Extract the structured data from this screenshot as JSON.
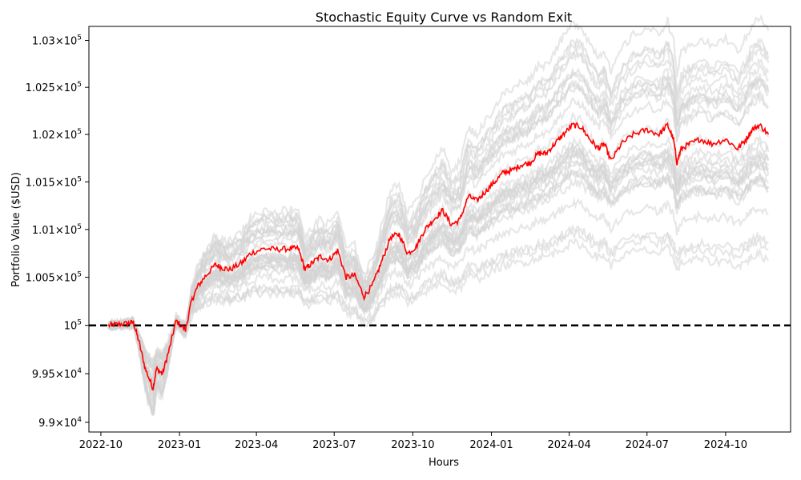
{
  "chart_data": {
    "type": "line",
    "title": "Stochastic Equity Curve vs Random Exit",
    "xlabel": "Hours",
    "ylabel": "Portfolio Value ($USD)",
    "x_range": [
      "2022-09-17",
      "2024-12-16"
    ],
    "y_range": [
      98900,
      103150
    ],
    "y_scale": "log",
    "grid": false,
    "legend": "none",
    "x_ticks": [
      "2022-10",
      "2023-01",
      "2023-04",
      "2023-07",
      "2023-10",
      "2024-01",
      "2024-04",
      "2024-07",
      "2024-10"
    ],
    "y_ticks": [
      {
        "value": 99000,
        "mantissa": "9.9",
        "exp": "4"
      },
      {
        "value": 99500,
        "mantissa": "9.95",
        "exp": "4"
      },
      {
        "value": 100000,
        "mantissa": "",
        "exp": "5"
      },
      {
        "value": 100500,
        "mantissa": "1.005",
        "exp": "5"
      },
      {
        "value": 101000,
        "mantissa": "1.01",
        "exp": "5"
      },
      {
        "value": 101500,
        "mantissa": "1.015",
        "exp": "5"
      },
      {
        "value": 102000,
        "mantissa": "1.02",
        "exp": "5"
      },
      {
        "value": 102500,
        "mantissa": "1.025",
        "exp": "5"
      },
      {
        "value": 103000,
        "mantissa": "1.03",
        "exp": "5"
      }
    ],
    "reference_line": {
      "y": 100000,
      "style": "dashed",
      "color": "#000000"
    },
    "colors": {
      "simulations": "#d3d3d3",
      "main": "#ff0000"
    },
    "main_series": {
      "name": "",
      "points": [
        [
          "2022-10-10",
          100000
        ],
        [
          "2022-10-20",
          100010
        ],
        [
          "2022-11-01",
          100020
        ],
        [
          "2022-11-08",
          100030
        ],
        [
          "2022-11-14",
          99850
        ],
        [
          "2022-11-22",
          99550
        ],
        [
          "2022-12-01",
          99350
        ],
        [
          "2022-12-05",
          99550
        ],
        [
          "2022-12-12",
          99500
        ],
        [
          "2022-12-20",
          99750
        ],
        [
          "2022-12-28",
          100050
        ],
        [
          "2023-01-08",
          99950
        ],
        [
          "2023-01-15",
          100250
        ],
        [
          "2023-01-22",
          100400
        ],
        [
          "2023-02-01",
          100520
        ],
        [
          "2023-02-12",
          100630
        ],
        [
          "2023-02-20",
          100600
        ],
        [
          "2023-03-01",
          100580
        ],
        [
          "2023-03-15",
          100650
        ],
        [
          "2023-03-25",
          100750
        ],
        [
          "2023-04-10",
          100800
        ],
        [
          "2023-04-25",
          100790
        ],
        [
          "2023-05-10",
          100800
        ],
        [
          "2023-05-20",
          100800
        ],
        [
          "2023-05-28",
          100580
        ],
        [
          "2023-06-05",
          100650
        ],
        [
          "2023-06-15",
          100720
        ],
        [
          "2023-06-25",
          100680
        ],
        [
          "2023-07-05",
          100780
        ],
        [
          "2023-07-15",
          100500
        ],
        [
          "2023-07-25",
          100520
        ],
        [
          "2023-08-05",
          100300
        ],
        [
          "2023-08-15",
          100420
        ],
        [
          "2023-08-25",
          100650
        ],
        [
          "2023-09-05",
          100920
        ],
        [
          "2023-09-15",
          100950
        ],
        [
          "2023-09-25",
          100750
        ],
        [
          "2023-10-05",
          100820
        ],
        [
          "2023-10-15",
          101000
        ],
        [
          "2023-10-25",
          101100
        ],
        [
          "2023-11-05",
          101200
        ],
        [
          "2023-11-15",
          101050
        ],
        [
          "2023-11-25",
          101100
        ],
        [
          "2023-12-05",
          101350
        ],
        [
          "2023-12-15",
          101300
        ],
        [
          "2023-12-25",
          101400
        ],
        [
          "2024-01-05",
          101500
        ],
        [
          "2024-01-15",
          101600
        ],
        [
          "2024-01-25",
          101620
        ],
        [
          "2024-02-05",
          101680
        ],
        [
          "2024-02-15",
          101700
        ],
        [
          "2024-02-25",
          101800
        ],
        [
          "2024-03-05",
          101800
        ],
        [
          "2024-03-15",
          101900
        ],
        [
          "2024-03-25",
          102000
        ],
        [
          "2024-04-05",
          102100
        ],
        [
          "2024-04-15",
          102080
        ],
        [
          "2024-04-25",
          101950
        ],
        [
          "2024-05-05",
          101850
        ],
        [
          "2024-05-12",
          101900
        ],
        [
          "2024-05-20",
          101720
        ],
        [
          "2024-06-01",
          101900
        ],
        [
          "2024-06-15",
          102000
        ],
        [
          "2024-07-01",
          102050
        ],
        [
          "2024-07-15",
          102000
        ],
        [
          "2024-07-25",
          102100
        ],
        [
          "2024-08-01",
          101950
        ],
        [
          "2024-08-05",
          101700
        ],
        [
          "2024-08-10",
          101850
        ],
        [
          "2024-08-20",
          101900
        ],
        [
          "2024-09-01",
          101950
        ],
        [
          "2024-09-15",
          101900
        ],
        [
          "2024-10-01",
          101950
        ],
        [
          "2024-10-15",
          101850
        ],
        [
          "2024-10-25",
          101950
        ],
        [
          "2024-11-01",
          102050
        ],
        [
          "2024-11-10",
          102100
        ],
        [
          "2024-11-20",
          102000
        ]
      ]
    }
  }
}
